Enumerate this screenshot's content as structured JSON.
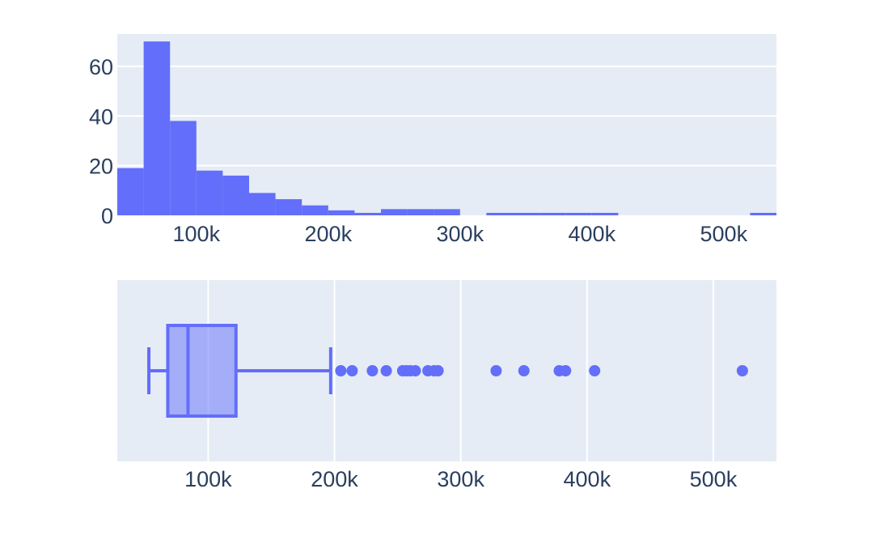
{
  "colors": {
    "plot_bg": "#e5ecf6",
    "grid": "#ffffff",
    "bar": "#636efa",
    "box_fill": "rgba(99,110,250,0.5)",
    "text": "#2a3f5f"
  },
  "chart_data": [
    {
      "type": "bar",
      "subtype": "histogram",
      "title": "",
      "xlabel": "",
      "ylabel": "",
      "xlim": [
        40000,
        540000
      ],
      "ylim": [
        0,
        73
      ],
      "grid": true,
      "x_ticks": [
        {
          "value": 100000,
          "label": "100k"
        },
        {
          "value": 200000,
          "label": "200k"
        },
        {
          "value": 300000,
          "label": "300k"
        },
        {
          "value": 400000,
          "label": "400k"
        },
        {
          "value": 500000,
          "label": "500k"
        }
      ],
      "y_ticks": [
        {
          "value": 0,
          "label": "0"
        },
        {
          "value": 20,
          "label": "20"
        },
        {
          "value": 40,
          "label": "40"
        },
        {
          "value": 60,
          "label": "60"
        }
      ],
      "bins": [
        {
          "start": 40000,
          "end": 60000,
          "count": 19
        },
        {
          "start": 60000,
          "end": 80000,
          "count": 70
        },
        {
          "start": 80000,
          "end": 100000,
          "count": 38
        },
        {
          "start": 100000,
          "end": 120000,
          "count": 18
        },
        {
          "start": 120000,
          "end": 140000,
          "count": 16
        },
        {
          "start": 140000,
          "end": 160000,
          "count": 9
        },
        {
          "start": 160000,
          "end": 180000,
          "count": 6.5
        },
        {
          "start": 180000,
          "end": 200000,
          "count": 4
        },
        {
          "start": 200000,
          "end": 220000,
          "count": 2
        },
        {
          "start": 220000,
          "end": 240000,
          "count": 1
        },
        {
          "start": 240000,
          "end": 260000,
          "count": 2.5
        },
        {
          "start": 260000,
          "end": 280000,
          "count": 2.5
        },
        {
          "start": 280000,
          "end": 300000,
          "count": 2.5
        },
        {
          "start": 320000,
          "end": 340000,
          "count": 1
        },
        {
          "start": 340000,
          "end": 360000,
          "count": 1
        },
        {
          "start": 360000,
          "end": 380000,
          "count": 1
        },
        {
          "start": 380000,
          "end": 400000,
          "count": 1
        },
        {
          "start": 400000,
          "end": 420000,
          "count": 1
        },
        {
          "start": 520000,
          "end": 540000,
          "count": 1
        }
      ]
    },
    {
      "type": "box",
      "title": "",
      "xlabel": "",
      "ylabel": "",
      "xlim": [
        28000,
        550000
      ],
      "grid": true,
      "x_ticks": [
        {
          "value": 100000,
          "label": "100k"
        },
        {
          "value": 200000,
          "label": "200k"
        },
        {
          "value": 300000,
          "label": "300k"
        },
        {
          "value": 400000,
          "label": "400k"
        },
        {
          "value": 500000,
          "label": "500k"
        }
      ],
      "lower_fence": 53000,
      "q1": 68000,
      "median": 84000,
      "q3": 122000,
      "upper_fence": 197000,
      "outliers": [
        205000,
        214000,
        230000,
        241000,
        254000,
        257000,
        260000,
        264000,
        274000,
        279000,
        282000,
        328000,
        350000,
        378000,
        383000,
        406000,
        523000
      ]
    }
  ]
}
